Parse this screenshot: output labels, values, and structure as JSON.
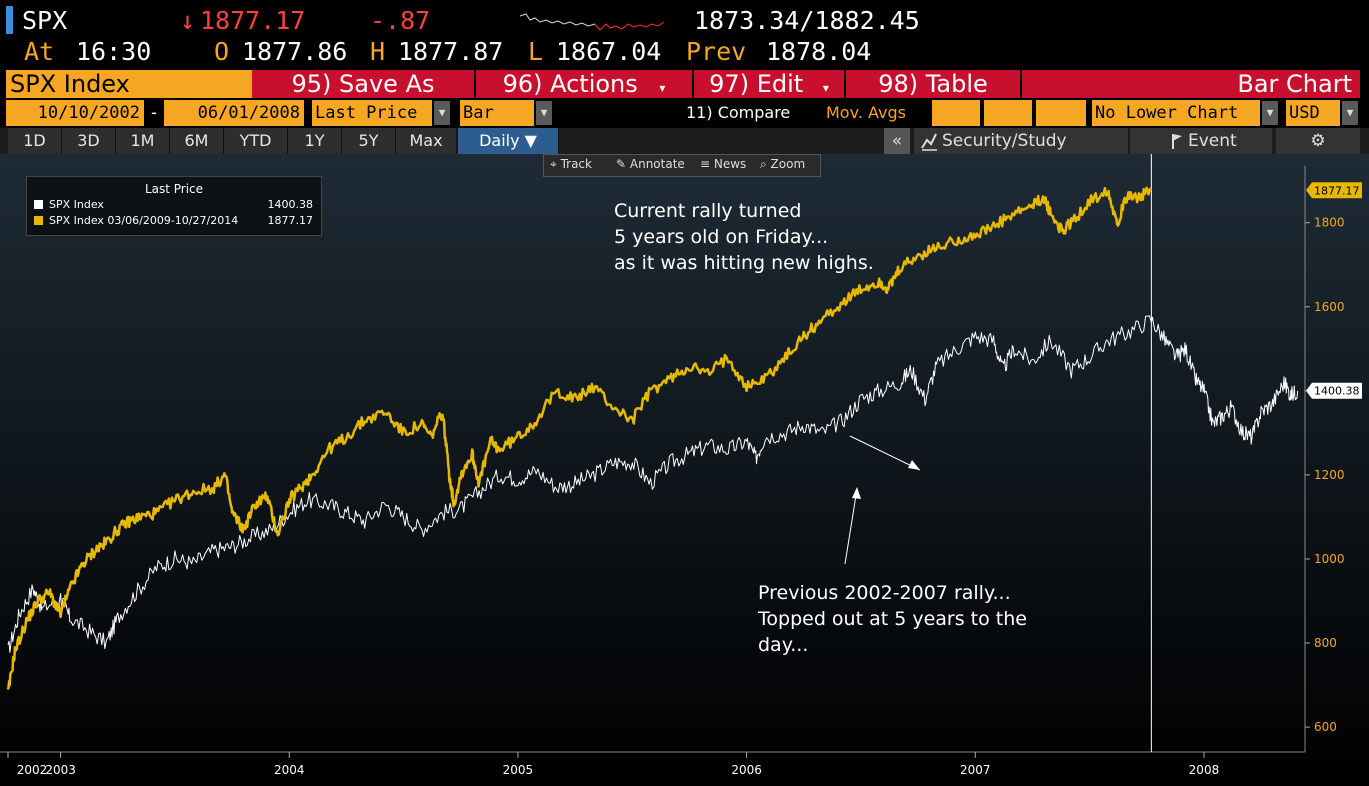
{
  "quote": {
    "ticker": "SPX",
    "arrow": "↓",
    "last": "1877.17",
    "change": "-.87",
    "bid_ask": "1873.34/1882.45",
    "at_label": "At",
    "time": "16:30",
    "o_label": "O",
    "open": "1877.86",
    "h_label": "H",
    "high": "1877.87",
    "l_label": "L",
    "low": "1867.04",
    "prev_label": "Prev",
    "prev": "1878.04"
  },
  "function_bar": {
    "security": "SPX Index",
    "save_as": "95) Save As",
    "actions": "96) Actions",
    "edit": "97) Edit",
    "table": "98) Table",
    "title": "Bar Chart"
  },
  "params": {
    "start_date": "10/10/2002",
    "separator": "-",
    "end_date": "06/01/2008",
    "field": "Last Price",
    "style": "Bar",
    "compare": "11) Compare",
    "mov_avgs": "Mov. Avgs",
    "lower_chart": "No Lower Chart",
    "currency": "USD"
  },
  "periods": [
    "1D",
    "3D",
    "1M",
    "6M",
    "YTD",
    "1Y",
    "5Y",
    "Max"
  ],
  "frequency": "Daily ▼",
  "toolbar": {
    "collapse": "«",
    "security_study": "Security/Study",
    "event": "Event",
    "settings_icon": "⚙"
  },
  "chart_tools": {
    "track": "Track",
    "annotate": "Annotate",
    "news": "News",
    "zoom": "Zoom"
  },
  "colors": {
    "brand_orange": "#f5a623",
    "function_red": "#c8102e",
    "series_white": "#ffffff",
    "series_gold": "#e6b800",
    "background": "#000000"
  },
  "chart_data": {
    "type": "line",
    "legend": {
      "title": "Last Price",
      "entries": [
        {
          "name": "SPX Index",
          "value": "1400.38",
          "color": "#ffffff"
        },
        {
          "name": "SPX Index 03/06/2009-10/27/2014",
          "value": "1877.17",
          "color": "#e6b800"
        }
      ]
    },
    "x_ticks": [
      "2002",
      "2003",
      "2004",
      "2005",
      "2006",
      "2007",
      "2008"
    ],
    "x_tick_values": [
      2002.77,
      2003.0,
      2004.0,
      2005.0,
      2006.0,
      2007.0,
      2008.0
    ],
    "xlim": [
      2002.77,
      2008.42
    ],
    "y_ticks": [
      "600",
      "800",
      "1000",
      "1200",
      "1400",
      "1600",
      "1800"
    ],
    "ylim": [
      555,
      1935
    ],
    "y_labels": {
      "white_last": "1400.38",
      "gold_last": "1877.17"
    },
    "vline_x": 2007.77,
    "series": [
      {
        "name": "SPX Index",
        "color": "#ffffff",
        "points": [
          [
            2002.77,
            780
          ],
          [
            2002.82,
            870
          ],
          [
            2002.88,
            930
          ],
          [
            2002.92,
            880
          ],
          [
            2003.0,
            910
          ],
          [
            2003.04,
            860
          ],
          [
            2003.12,
            830
          ],
          [
            2003.2,
            800
          ],
          [
            2003.25,
            860
          ],
          [
            2003.33,
            920
          ],
          [
            2003.42,
            980
          ],
          [
            2003.5,
            1000
          ],
          [
            2003.58,
            990
          ],
          [
            2003.67,
            1020
          ],
          [
            2003.75,
            1030
          ],
          [
            2003.83,
            1050
          ],
          [
            2003.92,
            1070
          ],
          [
            2004.0,
            1110
          ],
          [
            2004.08,
            1140
          ],
          [
            2004.17,
            1130
          ],
          [
            2004.25,
            1110
          ],
          [
            2004.33,
            1090
          ],
          [
            2004.42,
            1130
          ],
          [
            2004.5,
            1100
          ],
          [
            2004.58,
            1070
          ],
          [
            2004.67,
            1110
          ],
          [
            2004.75,
            1120
          ],
          [
            2004.83,
            1160
          ],
          [
            2004.92,
            1200
          ],
          [
            2005.0,
            1190
          ],
          [
            2005.08,
            1210
          ],
          [
            2005.17,
            1170
          ],
          [
            2005.25,
            1180
          ],
          [
            2005.33,
            1200
          ],
          [
            2005.42,
            1230
          ],
          [
            2005.5,
            1230
          ],
          [
            2005.58,
            1180
          ],
          [
            2005.67,
            1230
          ],
          [
            2005.75,
            1250
          ],
          [
            2005.83,
            1270
          ],
          [
            2005.92,
            1260
          ],
          [
            2006.0,
            1280
          ],
          [
            2006.04,
            1240
          ],
          [
            2006.08,
            1290
          ],
          [
            2006.17,
            1300
          ],
          [
            2006.25,
            1320
          ],
          [
            2006.33,
            1300
          ],
          [
            2006.42,
            1330
          ],
          [
            2006.5,
            1380
          ],
          [
            2006.58,
            1400
          ],
          [
            2006.67,
            1420
          ],
          [
            2006.72,
            1450
          ],
          [
            2006.78,
            1380
          ],
          [
            2006.83,
            1460
          ],
          [
            2006.92,
            1500
          ],
          [
            2007.0,
            1530
          ],
          [
            2007.08,
            1520
          ],
          [
            2007.12,
            1450
          ],
          [
            2007.17,
            1500
          ],
          [
            2007.25,
            1470
          ],
          [
            2007.33,
            1520
          ],
          [
            2007.42,
            1450
          ],
          [
            2007.5,
            1480
          ],
          [
            2007.58,
            1520
          ],
          [
            2007.67,
            1540
          ],
          [
            2007.77,
            1570
          ],
          [
            2007.83,
            1520
          ],
          [
            2007.88,
            1480
          ],
          [
            2007.92,
            1500
          ],
          [
            2007.96,
            1430
          ],
          [
            2008.0,
            1400
          ],
          [
            2008.04,
            1320
          ],
          [
            2008.08,
            1340
          ],
          [
            2008.12,
            1360
          ],
          [
            2008.17,
            1300
          ],
          [
            2008.21,
            1290
          ],
          [
            2008.25,
            1350
          ],
          [
            2008.3,
            1370
          ],
          [
            2008.35,
            1420
          ],
          [
            2008.38,
            1390
          ],
          [
            2008.41,
            1400
          ]
        ]
      },
      {
        "name": "SPX Index 03/06/2009-10/27/2014",
        "color": "#e6b800",
        "points": [
          [
            2002.77,
            680
          ],
          [
            2002.8,
            780
          ],
          [
            2002.85,
            850
          ],
          [
            2002.9,
            900
          ],
          [
            2002.95,
            920
          ],
          [
            2003.0,
            870
          ],
          [
            2003.05,
            940
          ],
          [
            2003.1,
            990
          ],
          [
            2003.15,
            1020
          ],
          [
            2003.2,
            1040
          ],
          [
            2003.25,
            1070
          ],
          [
            2003.3,
            1090
          ],
          [
            2003.35,
            1100
          ],
          [
            2003.42,
            1110
          ],
          [
            2003.5,
            1140
          ],
          [
            2003.58,
            1160
          ],
          [
            2003.67,
            1170
          ],
          [
            2003.72,
            1200
          ],
          [
            2003.75,
            1110
          ],
          [
            2003.8,
            1070
          ],
          [
            2003.85,
            1130
          ],
          [
            2003.9,
            1150
          ],
          [
            2003.95,
            1060
          ],
          [
            2004.0,
            1140
          ],
          [
            2004.05,
            1170
          ],
          [
            2004.1,
            1200
          ],
          [
            2004.17,
            1260
          ],
          [
            2004.25,
            1290
          ],
          [
            2004.33,
            1330
          ],
          [
            2004.42,
            1350
          ],
          [
            2004.5,
            1300
          ],
          [
            2004.58,
            1320
          ],
          [
            2004.62,
            1290
          ],
          [
            2004.67,
            1350
          ],
          [
            2004.7,
            1200
          ],
          [
            2004.72,
            1130
          ],
          [
            2004.75,
            1200
          ],
          [
            2004.8,
            1250
          ],
          [
            2004.83,
            1180
          ],
          [
            2004.88,
            1280
          ],
          [
            2004.92,
            1260
          ],
          [
            2005.0,
            1290
          ],
          [
            2005.08,
            1330
          ],
          [
            2005.17,
            1400
          ],
          [
            2005.25,
            1380
          ],
          [
            2005.33,
            1410
          ],
          [
            2005.42,
            1360
          ],
          [
            2005.5,
            1330
          ],
          [
            2005.58,
            1400
          ],
          [
            2005.67,
            1430
          ],
          [
            2005.75,
            1460
          ],
          [
            2005.83,
            1440
          ],
          [
            2005.92,
            1480
          ],
          [
            2006.0,
            1410
          ],
          [
            2006.08,
            1430
          ],
          [
            2006.17,
            1480
          ],
          [
            2006.25,
            1530
          ],
          [
            2006.33,
            1570
          ],
          [
            2006.42,
            1610
          ],
          [
            2006.5,
            1640
          ],
          [
            2006.58,
            1660
          ],
          [
            2006.62,
            1640
          ],
          [
            2006.67,
            1690
          ],
          [
            2006.75,
            1720
          ],
          [
            2006.83,
            1740
          ],
          [
            2006.92,
            1760
          ],
          [
            2007.0,
            1770
          ],
          [
            2007.08,
            1790
          ],
          [
            2007.17,
            1820
          ],
          [
            2007.25,
            1840
          ],
          [
            2007.3,
            1860
          ],
          [
            2007.33,
            1820
          ],
          [
            2007.38,
            1780
          ],
          [
            2007.42,
            1800
          ],
          [
            2007.5,
            1850
          ],
          [
            2007.58,
            1880
          ],
          [
            2007.62,
            1800
          ],
          [
            2007.67,
            1870
          ],
          [
            2007.72,
            1860
          ],
          [
            2007.77,
            1877
          ]
        ]
      }
    ]
  },
  "annotations": [
    {
      "name": "current-rally-annotation",
      "lines": [
        "Current rally turned",
        "5 years old on Friday...",
        "as it was hitting new highs."
      ]
    },
    {
      "name": "previous-rally-annotation",
      "lines": [
        "Previous 2002-2007 rally...",
        "Topped out at 5 years to the",
        "day..."
      ]
    }
  ]
}
